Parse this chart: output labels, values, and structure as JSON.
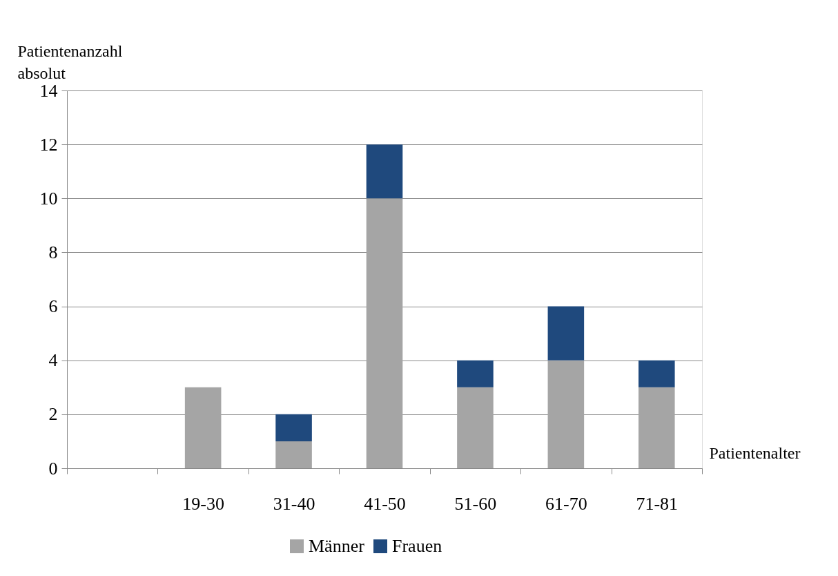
{
  "chart_data": {
    "type": "bar",
    "stacked": true,
    "xlabel": "Patientenalter",
    "ylabel": "Patientenanzahl absolut",
    "categories": [
      null,
      "19-30",
      "31-40",
      "41-50",
      "51-60",
      "61-70",
      "71-81"
    ],
    "series": [
      {
        "name": "Männer",
        "color": "#a5a5a5",
        "values": [
          null,
          3,
          1,
          10,
          3,
          4,
          3
        ]
      },
      {
        "name": "Frauen",
        "color": "#1f497d",
        "values": [
          null,
          null,
          1,
          2,
          1,
          2,
          1
        ]
      }
    ],
    "ylim": [
      0,
      14
    ],
    "yticks": [
      0,
      2,
      4,
      6,
      8,
      10,
      12,
      14
    ],
    "grid": "y",
    "legend": "bottom"
  }
}
